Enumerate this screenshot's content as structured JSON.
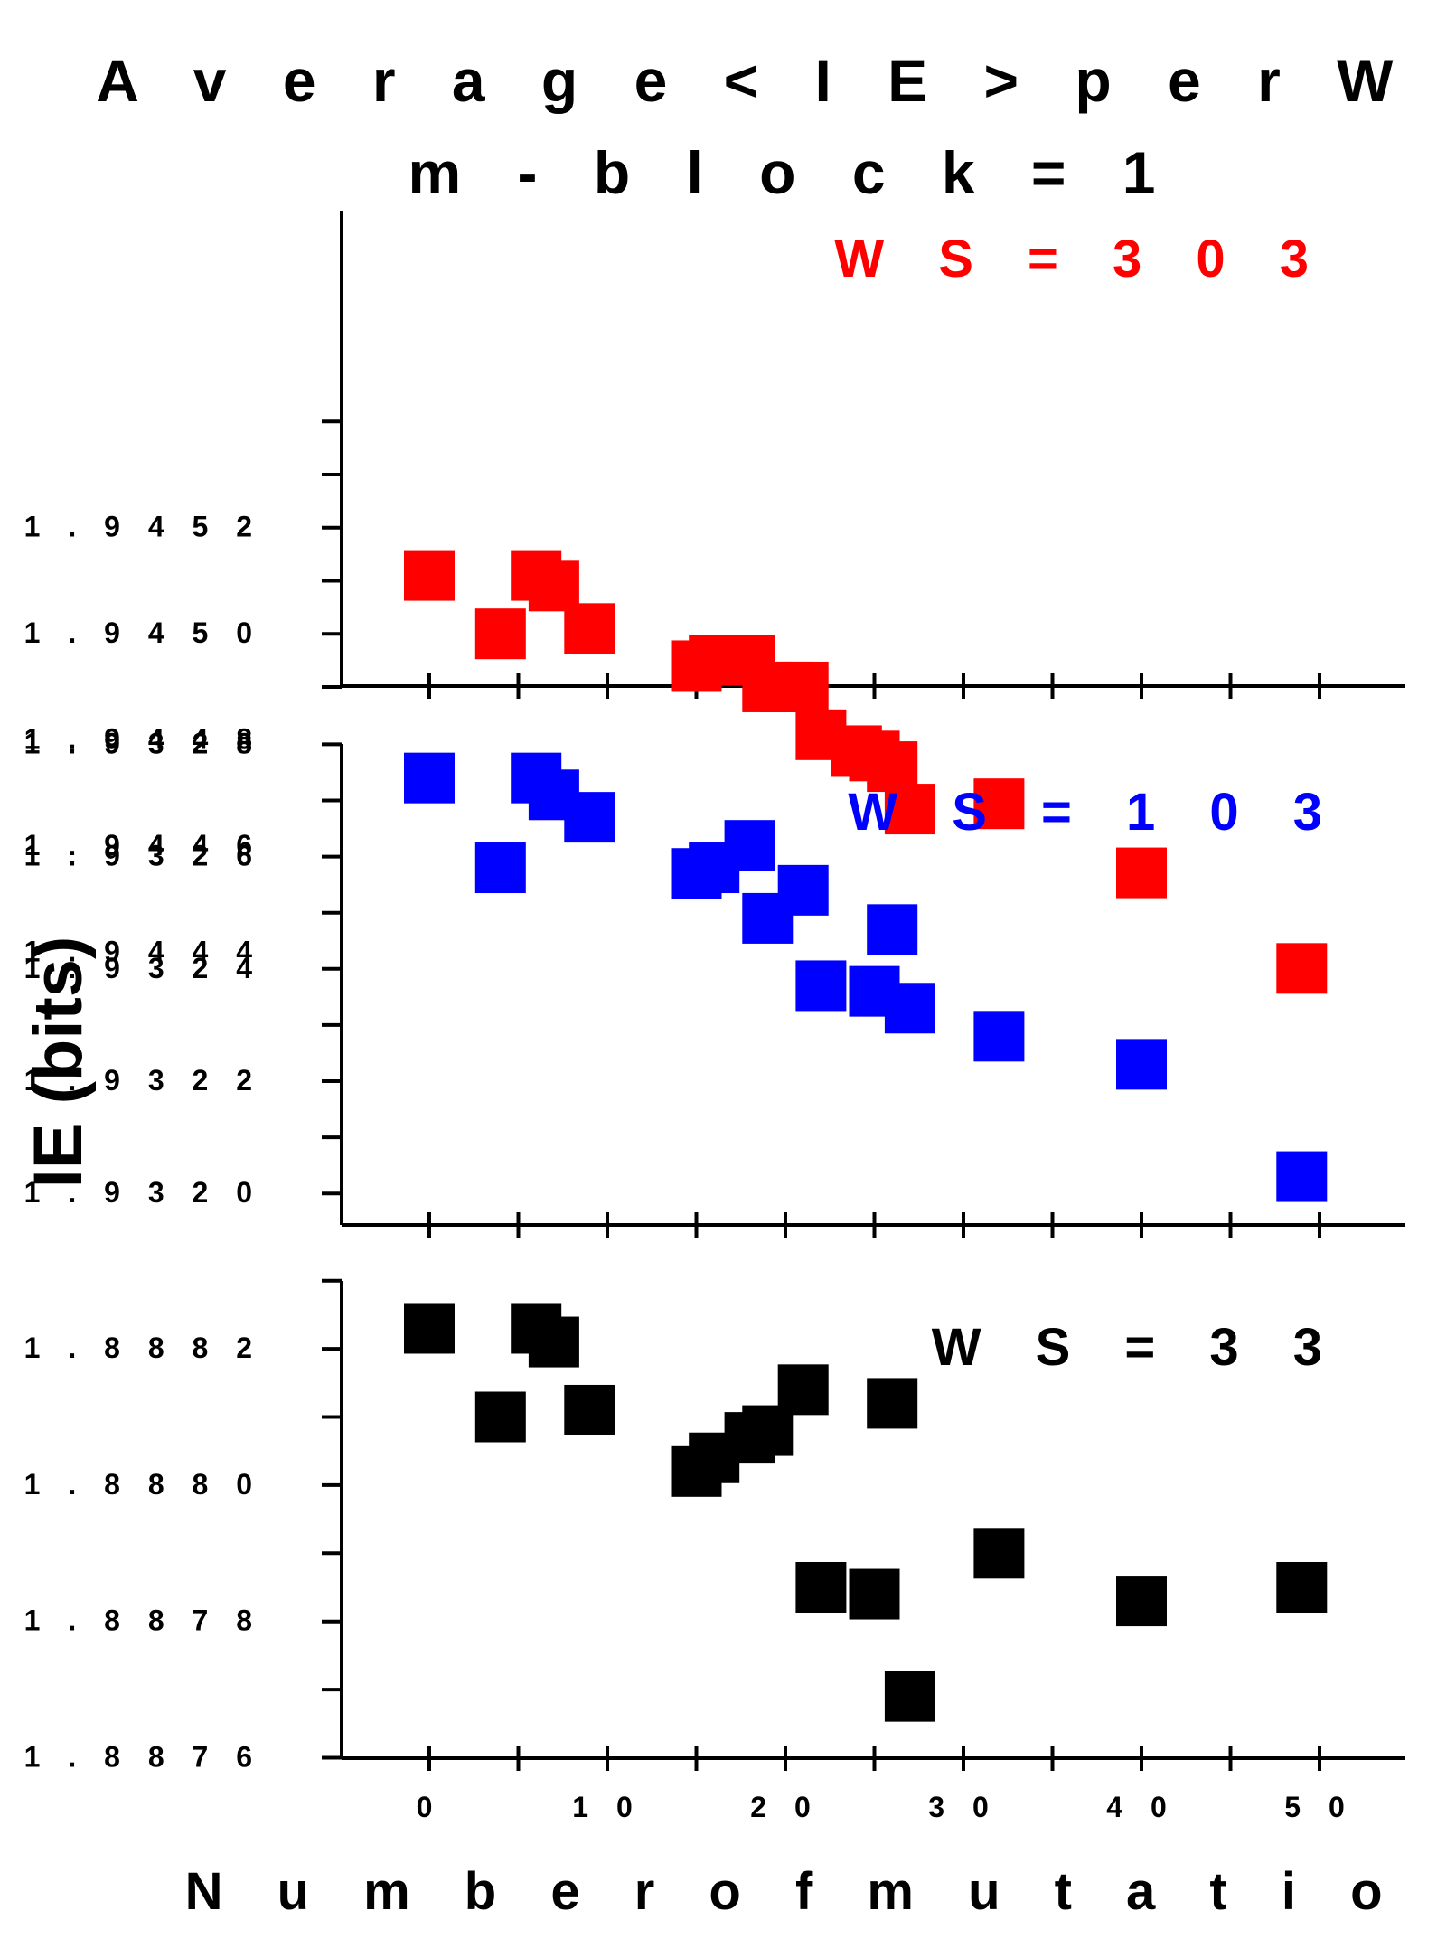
{
  "title": [
    "A v e r a g e < I E > p e r W S",
    "m - b l o c k = 1"
  ],
  "x_axis_title": "N u m b e r o f m u t a t i o n s",
  "y_axis_title": "IE (bits)",
  "chart_data": [
    {
      "type": "scatter",
      "annotation": "W S = 3 0 3",
      "color": "#ff0000",
      "xlim": [
        -5,
        55
      ],
      "ylim": [
        1.9443,
        1.9452
      ],
      "yticks": [
        1.9444,
        1.9446,
        1.9448,
        1.945,
        1.9452
      ],
      "ytick_labels": [
        "1 . 9 4 4 4",
        "1 . 9 4 4 6",
        "1 . 9 4 4 8",
        "1 . 9 4 5 0",
        "1 . 9 4 5 2"
      ],
      "x": [
        0,
        4,
        6,
        7,
        9,
        15,
        16,
        17,
        18,
        19,
        20,
        21,
        22,
        24,
        25,
        26,
        27,
        32,
        40,
        49
      ],
      "y": [
        1.94511,
        1.945,
        1.94511,
        1.94509,
        1.94501,
        1.94494,
        1.94495,
        1.94495,
        1.94495,
        1.9449,
        1.9449,
        1.9449,
        1.94481,
        1.94478,
        1.94477,
        1.94475,
        1.94467,
        1.94468,
        1.94455,
        1.94437
      ]
    },
    {
      "type": "scatter",
      "annotation": "W S = 1 0 3",
      "color": "#0000ff",
      "xlim": [
        -5,
        55
      ],
      "ylim": [
        1.9319,
        1.9328
      ],
      "yticks": [
        1.932,
        1.9322,
        1.9324,
        1.9326,
        1.9328
      ],
      "ytick_labels": [
        "1 . 9 3 2 0",
        "1 . 9 3 2 2",
        "1 . 9 3 2 4",
        "1 . 9 3 2 6",
        "1 . 9 3 2 8"
      ],
      "x": [
        0,
        4,
        6,
        7,
        9,
        15,
        16,
        18,
        19,
        21,
        22,
        25,
        26,
        27,
        32,
        40,
        49
      ],
      "y": [
        1.93274,
        1.93258,
        1.93274,
        1.93271,
        1.93267,
        1.93257,
        1.93258,
        1.93262,
        1.93249,
        1.93254,
        1.93237,
        1.93236,
        1.93247,
        1.93233,
        1.93228,
        1.93223,
        1.93203
      ]
    },
    {
      "type": "scatter",
      "annotation": "W S = 3 3",
      "color": "#000000",
      "xlim": [
        -5,
        55
      ],
      "ylim": [
        1.8876,
        1.8883
      ],
      "yticks": [
        1.8876,
        1.8878,
        1.888,
        1.8882
      ],
      "ytick_labels": [
        "1 . 8 8 7 6",
        "1 . 8 8 7 8",
        "1 . 8 8 8 0",
        "1 . 8 8 8 2"
      ],
      "x": [
        0,
        4,
        6,
        7,
        9,
        15,
        16,
        18,
        19,
        21,
        22,
        25,
        26,
        27,
        32,
        40,
        49
      ],
      "y": [
        1.88823,
        1.8881,
        1.88823,
        1.88821,
        1.88811,
        1.88802,
        1.88804,
        1.88807,
        1.88808,
        1.88814,
        1.88785,
        1.88784,
        1.88812,
        1.88769,
        1.8879,
        1.88783,
        1.88785
      ]
    }
  ],
  "xticks": [
    0,
    10,
    20,
    30,
    40,
    50
  ],
  "xtick_labels": [
    "0",
    "1 0",
    "2 0",
    "3 0",
    "4 0",
    "5 0"
  ]
}
